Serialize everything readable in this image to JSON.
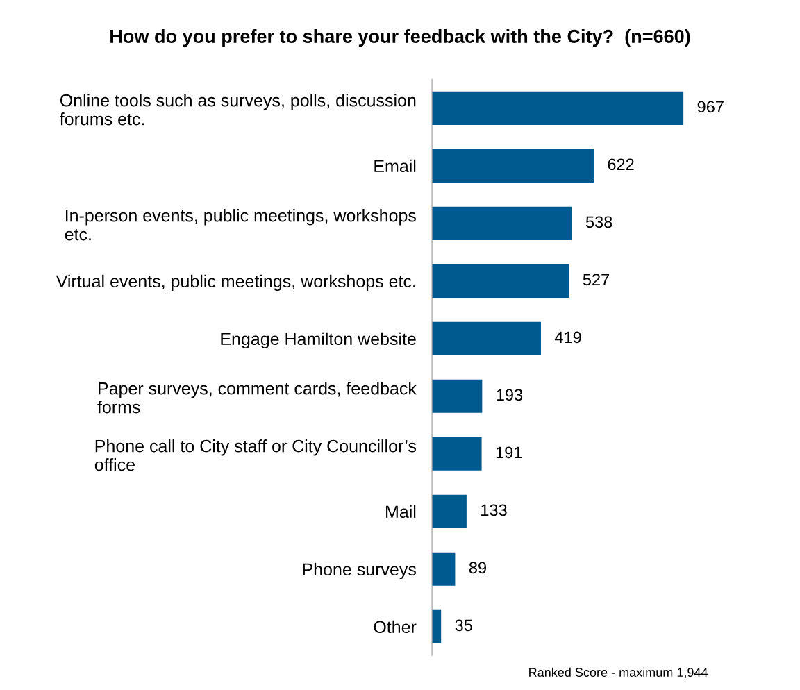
{
  "chart_data": {
    "type": "bar",
    "orientation": "horizontal",
    "title": "How do you prefer to share your feedback with the City?  (n=660)",
    "categories": [
      "Online tools such as surveys, polls, discussion\nforums etc.",
      "Email",
      "In-person events, public meetings, workshops\netc.",
      "Virtual events, public meetings, workshops etc.",
      "Engage Hamilton website",
      "Paper surveys, comment cards, feedback\nforms",
      "Phone call to City staff or City Councillor’s\noffice",
      "Mail",
      "Phone surveys",
      "Other"
    ],
    "values": [
      967,
      622,
      538,
      527,
      419,
      193,
      191,
      133,
      89,
      35
    ],
    "color": "#005a8f",
    "data_labels": true,
    "grid": false,
    "legend": false,
    "annotations": [
      "Ranked Score - maximum 1,944"
    ]
  }
}
